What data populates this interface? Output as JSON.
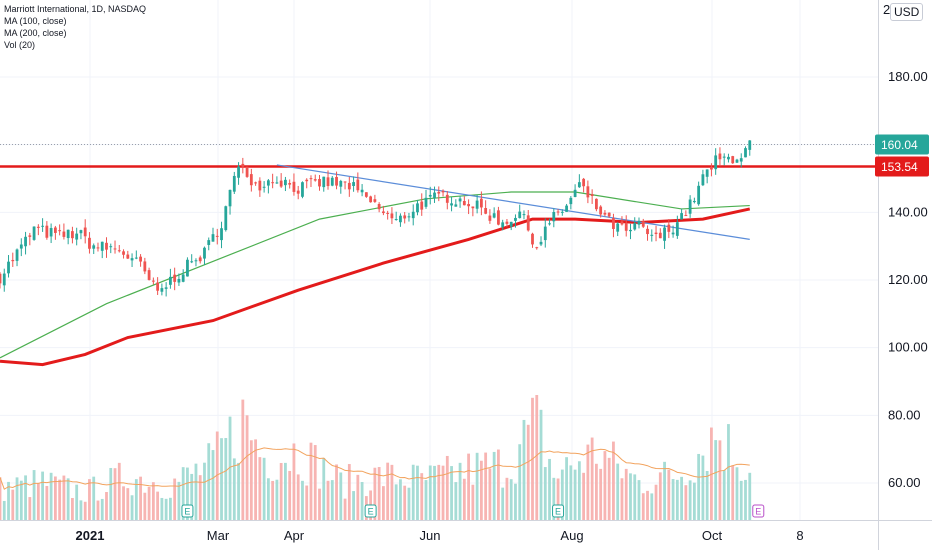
{
  "legend": {
    "symbol": "Marriott International, 1D, NASDAQ",
    "ma100": "MA (100, close)",
    "ma200": "MA (200, close)",
    "vol": "Vol (20)"
  },
  "price_axis": {
    "currency": "USD",
    "top_partial": "2",
    "ticks": [
      "180.00",
      "160.00",
      "140.00",
      "120.00",
      "100.00",
      "80.00",
      "60.00"
    ]
  },
  "time_axis": {
    "ticks": [
      "2021",
      "Mar",
      "Apr",
      "Jun",
      "Aug",
      "Oct",
      "8"
    ]
  },
  "badges": {
    "last_price": "160.04",
    "resistance": "153.54"
  },
  "earnings_marker": "E",
  "colors": {
    "up": "#26a69a",
    "down": "#ef5350",
    "ma100": "#4caf50",
    "ma200": "#e31b1b",
    "trendline": "#5b8dd9",
    "resistance": "#e31b1b",
    "grid": "#f0f3fa",
    "axis_text": "#131722"
  },
  "chart_data": {
    "type": "candlestick",
    "title": "Marriott International, 1D, NASDAQ",
    "ylim": [
      48,
      200
    ],
    "y_ticks": [
      60,
      80,
      100,
      120,
      140,
      160,
      180
    ],
    "x_ticks": [
      "2021",
      "Mar",
      "Apr",
      "Jun",
      "Aug",
      "Oct",
      "8"
    ],
    "last_price": 160.04,
    "resistance_level": 153.54,
    "price_path": [
      [
        0,
        121
      ],
      [
        8,
        135
      ],
      [
        14,
        133
      ],
      [
        18,
        134
      ],
      [
        22,
        130
      ],
      [
        28,
        129
      ],
      [
        33,
        124
      ],
      [
        37,
        116
      ],
      [
        41,
        121
      ],
      [
        48,
        128
      ],
      [
        52,
        137
      ],
      [
        55,
        150
      ],
      [
        57,
        154
      ],
      [
        60,
        148
      ],
      [
        65,
        150
      ],
      [
        70,
        147
      ],
      [
        76,
        149
      ],
      [
        82,
        148
      ],
      [
        88,
        142
      ],
      [
        93,
        137
      ],
      [
        98,
        142
      ],
      [
        104,
        145
      ],
      [
        110,
        143
      ],
      [
        114,
        140
      ],
      [
        118,
        137
      ],
      [
        122,
        140
      ],
      [
        126,
        130
      ],
      [
        129,
        137
      ],
      [
        133,
        142
      ],
      [
        136,
        148
      ],
      [
        139,
        143
      ],
      [
        143,
        137
      ],
      [
        147,
        134
      ],
      [
        150,
        136
      ],
      [
        154,
        132
      ],
      [
        158,
        136
      ],
      [
        162,
        142
      ],
      [
        165,
        150
      ],
      [
        168,
        155
      ],
      [
        171,
        156
      ],
      [
        174,
        157
      ],
      [
        176,
        160
      ]
    ],
    "ma100_path": [
      [
        0,
        97
      ],
      [
        25,
        113
      ],
      [
        55,
        128
      ],
      [
        75,
        138
      ],
      [
        100,
        144
      ],
      [
        120,
        146
      ],
      [
        135,
        146
      ],
      [
        160,
        141
      ],
      [
        176,
        142
      ]
    ],
    "ma200_path": [
      [
        0,
        96
      ],
      [
        10,
        95
      ],
      [
        20,
        98
      ],
      [
        30,
        103
      ],
      [
        50,
        108
      ],
      [
        70,
        117
      ],
      [
        90,
        125
      ],
      [
        110,
        132
      ],
      [
        125,
        138
      ],
      [
        135,
        138
      ],
      [
        150,
        137
      ],
      [
        165,
        138
      ],
      [
        176,
        141
      ]
    ],
    "trendline": [
      [
        65,
        154
      ],
      [
        176,
        132
      ]
    ],
    "volume_scale_note": "relative 0-1",
    "volume_path": [
      [
        0,
        0.25
      ],
      [
        10,
        0.3
      ],
      [
        20,
        0.22
      ],
      [
        30,
        0.35
      ],
      [
        40,
        0.28
      ],
      [
        50,
        0.45
      ],
      [
        57,
        0.8
      ],
      [
        62,
        0.5
      ],
      [
        70,
        0.55
      ],
      [
        80,
        0.3
      ],
      [
        90,
        0.35
      ],
      [
        100,
        0.32
      ],
      [
        110,
        0.4
      ],
      [
        120,
        0.45
      ],
      [
        126,
        0.8
      ],
      [
        130,
        0.35
      ],
      [
        140,
        0.55
      ],
      [
        150,
        0.3
      ],
      [
        160,
        0.38
      ],
      [
        168,
        0.7
      ],
      [
        176,
        0.4
      ]
    ],
    "earnings_days": [
      44,
      87,
      131,
      178
    ]
  }
}
